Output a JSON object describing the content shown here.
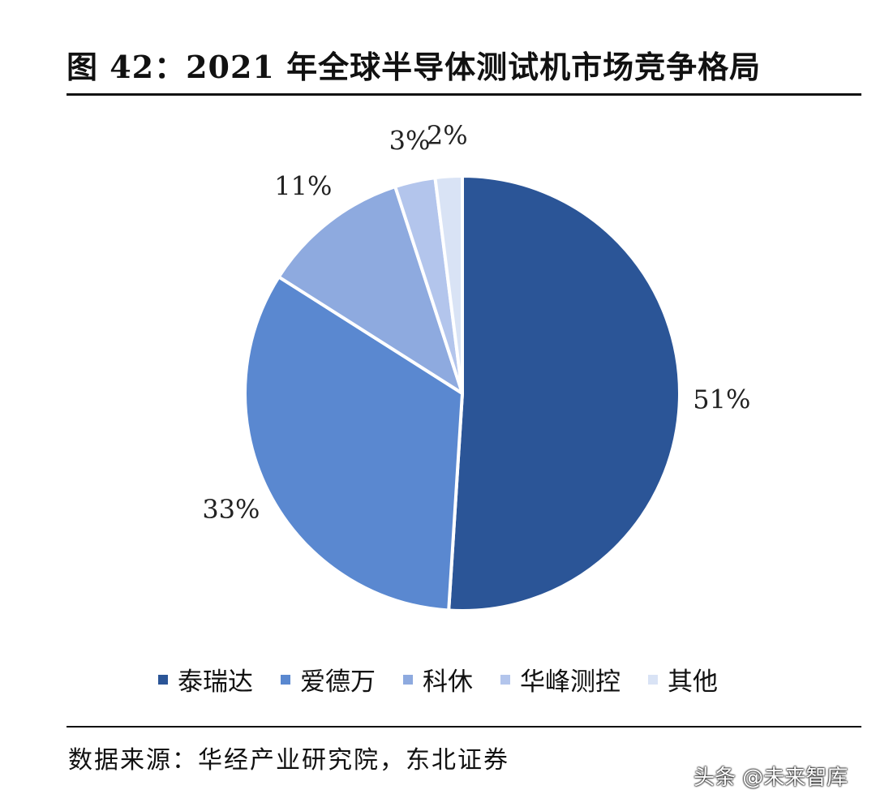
{
  "title": "图 42：2021 年全球半导体测试机市场竞争格局",
  "source": "数据来源：华经产业研究院，东北证券",
  "watermark": "头条 @未来智库",
  "chart_data": {
    "type": "pie",
    "title": "图 42：2021 年全球半导体测试机市场竞争格局",
    "categories": [
      "泰瑞达",
      "爱德万",
      "科休",
      "华峰测控",
      "其他"
    ],
    "values": [
      51,
      33,
      11,
      3,
      2
    ],
    "value_labels": [
      "51%",
      "33%",
      "11%",
      "3%",
      "2%"
    ],
    "colors": [
      "#2b5597",
      "#5a88d0",
      "#8eaadf",
      "#b3c5ec",
      "#d9e3f5"
    ],
    "legend_position": "bottom"
  }
}
